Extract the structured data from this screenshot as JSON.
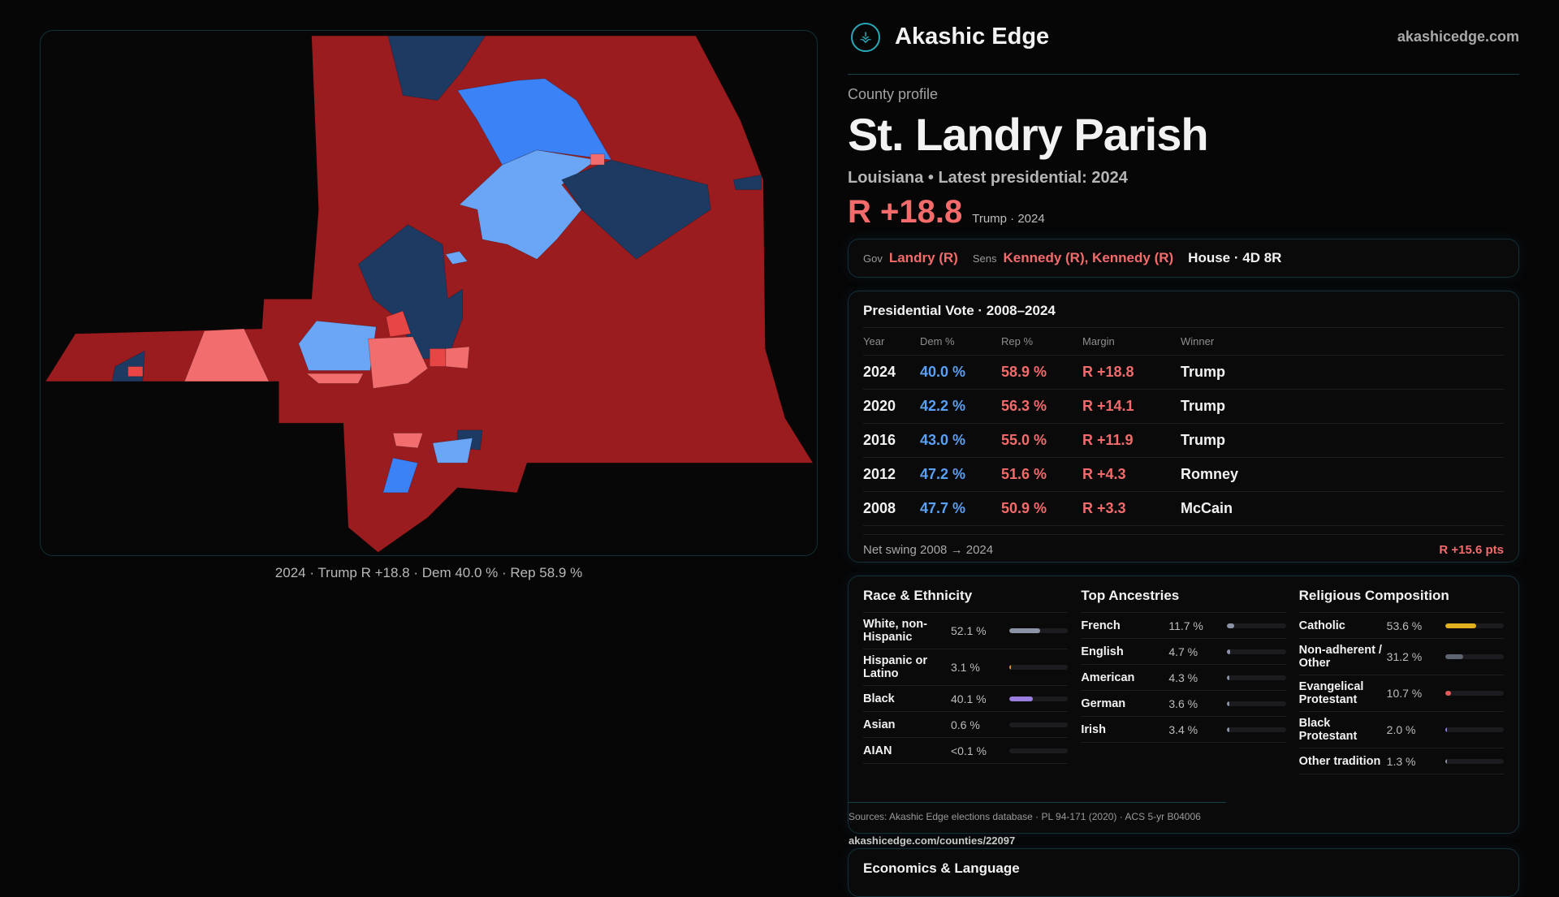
{
  "map": {
    "caption": "2024 · Trump R +18.8 · Dem 40.0 % · Rep 58.9 %",
    "colors": {
      "safe_r": "#9b1c1f",
      "lean_r": "#f26d6d",
      "likely_r": "#e84545",
      "safe_d": "#1d3a63",
      "likely_d": "#3b82f6",
      "lean_d": "#6aa6f5"
    }
  },
  "header": {
    "logo_icon": "compass-emblem-icon",
    "brand": "Akashic Edge",
    "site": "akashicedge.com"
  },
  "profile": {
    "kicker": "County profile",
    "title": "St. Landry Parish",
    "subtitle": "Louisiana • Latest presidential: 2024",
    "margin": "R +18.8",
    "margin_note": "Trump · 2024"
  },
  "officials": {
    "gov_label": "Gov",
    "gov": "Landry (R)",
    "sens_label": "Sens",
    "sens": "Kennedy (R), Kennedy (R)",
    "house": "House · 4D 8R"
  },
  "presidential": {
    "title": "Presidential Vote · 2008–2024",
    "headers": [
      "Year",
      "Dem %",
      "Rep %",
      "Margin",
      "Winner"
    ],
    "rows": [
      [
        "2024",
        "40.0 %",
        "58.9 %",
        "R +18.8",
        "Trump"
      ],
      [
        "2020",
        "42.2 %",
        "56.3 %",
        "R +14.1",
        "Trump"
      ],
      [
        "2016",
        "43.0 %",
        "55.0 %",
        "R +11.9",
        "Trump"
      ],
      [
        "2012",
        "47.2 %",
        "51.6 %",
        "R +4.3",
        "Romney"
      ],
      [
        "2008",
        "47.7 %",
        "50.9 %",
        "R +3.3",
        "McCain"
      ]
    ],
    "swing_label": "Net swing 2008 → 2024",
    "swing_value": "R +15.6 pts"
  },
  "demographics": {
    "race": {
      "title": "Race & Ethnicity",
      "items": [
        {
          "label": "White, non-Hispanic",
          "pct": "52.1 %",
          "value": 52.1,
          "color": "#8a94a6"
        },
        {
          "label": "Hispanic or Latino",
          "pct": "3.1 %",
          "value": 3.1,
          "color": "#e8962a"
        },
        {
          "label": "Black",
          "pct": "40.1 %",
          "value": 40.1,
          "color": "#9b7fe0"
        },
        {
          "label": "Asian",
          "pct": "0.6 %",
          "value": 0.6,
          "color": "#1c1c20"
        },
        {
          "label": "AIAN",
          "pct": "<0.1 %",
          "value": 0.05,
          "color": "#1c1c20"
        }
      ]
    },
    "ancestry": {
      "title": "Top Ancestries",
      "items": [
        {
          "label": "French",
          "pct": "11.7 %",
          "value": 11.7,
          "color": "#8a94a6"
        },
        {
          "label": "English",
          "pct": "4.7 %",
          "value": 4.7,
          "color": "#8a94a6"
        },
        {
          "label": "American",
          "pct": "4.3 %",
          "value": 4.3,
          "color": "#8a94a6"
        },
        {
          "label": "German",
          "pct": "3.6 %",
          "value": 3.6,
          "color": "#8a94a6"
        },
        {
          "label": "Irish",
          "pct": "3.4 %",
          "value": 3.4,
          "color": "#8a94a6"
        }
      ]
    },
    "religion": {
      "title": "Religious Composition",
      "items": [
        {
          "label": "Catholic",
          "pct": "53.6 %",
          "value": 53.6,
          "color": "#e0b020"
        },
        {
          "label": "Non-adherent / Other",
          "pct": "31.2 %",
          "value": 31.2,
          "color": "#5e6470"
        },
        {
          "label": "Evangelical Protestant",
          "pct": "10.7 %",
          "value": 10.7,
          "color": "#e05a5a"
        },
        {
          "label": "Black Protestant",
          "pct": "2.0 %",
          "value": 2.0,
          "color": "#8c7fe0"
        },
        {
          "label": "Other tradition",
          "pct": "1.3 %",
          "value": 1.3,
          "color": "#8a94a6"
        }
      ]
    },
    "sources": "Sources: Akashic Edge elections database · PL 94-171 (2020) · ACS 5-yr B04006",
    "source_url": "akashicedge.com/counties/22097"
  },
  "economics": {
    "title": "Economics & Language"
  }
}
